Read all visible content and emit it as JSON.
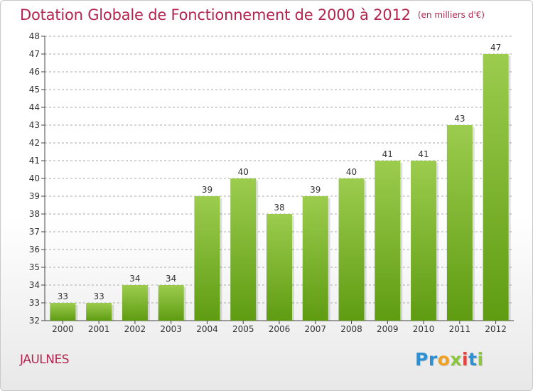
{
  "header": {
    "title": "Dotation Globale de Fonctionnement de 2000 à 2012",
    "subtitle": "(en milliers d'€)"
  },
  "footer": {
    "place": "JAULNES",
    "brand": "Proxiti",
    "brand_letters": [
      {
        "ch": "P",
        "color": "#2e8fd1"
      },
      {
        "ch": "r",
        "color": "#2e8fd1"
      },
      {
        "ch": "o",
        "color": "#f0a020"
      },
      {
        "ch": "x",
        "color": "#8cc63f"
      },
      {
        "ch": "i",
        "color": "#e8403a"
      },
      {
        "ch": "t",
        "color": "#2e8fd1"
      },
      {
        "ch": "i",
        "color": "#8cc63f"
      }
    ]
  },
  "colors": {
    "title": "#b3244f",
    "bar_top": "#9ccc4e",
    "bar_bottom": "#5f9c12",
    "grid": "#aaaaaa",
    "axis": "#444444"
  },
  "chart_data": {
    "type": "bar",
    "title": "Dotation Globale de Fonctionnement de 2000 à 2012",
    "subtitle": "(en milliers d'€)",
    "xlabel": "",
    "ylabel": "",
    "categories": [
      "2000",
      "2001",
      "2002",
      "2003",
      "2004",
      "2005",
      "2006",
      "2007",
      "2008",
      "2009",
      "2010",
      "2011",
      "2012"
    ],
    "values": [
      33,
      33,
      34,
      34,
      39,
      40,
      38,
      39,
      40,
      41,
      41,
      43,
      47
    ],
    "ylim": [
      32,
      48
    ],
    "yticks": [
      32,
      33,
      34,
      35,
      36,
      37,
      38,
      39,
      40,
      41,
      42,
      43,
      44,
      45,
      46,
      47,
      48
    ],
    "grid": "horizontal dashed",
    "legend": "none",
    "data_labels": true
  }
}
